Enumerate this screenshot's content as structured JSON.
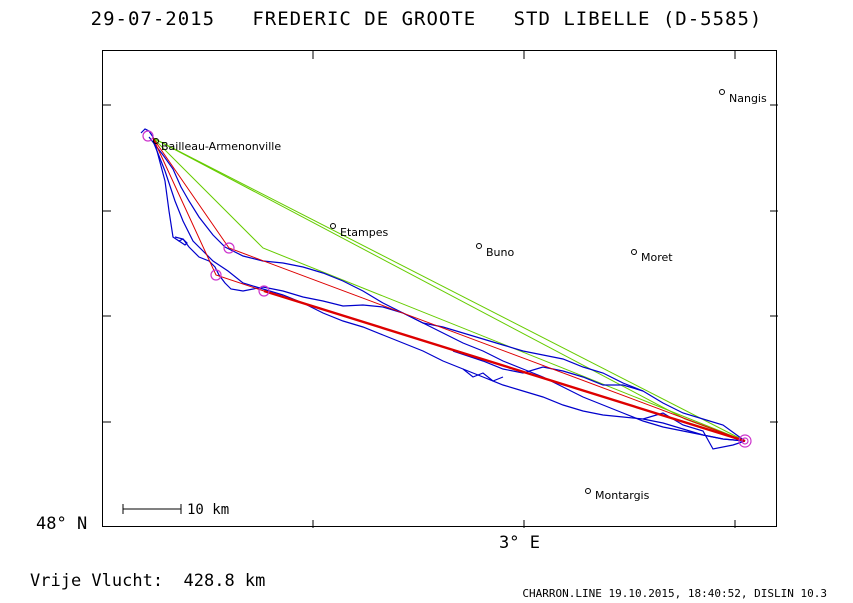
{
  "header": {
    "date": "29-07-2015",
    "pilot": "FREDERIC DE GROOTE",
    "glider": "STD LIBELLE (D-5585)"
  },
  "axes": {
    "latitude_label": "48° N",
    "longitude_label": "3° E"
  },
  "scale_bar": {
    "label": "10 km"
  },
  "towns": [
    {
      "name": "Nangis"
    },
    {
      "name": "Bailleau-Armenonville"
    },
    {
      "name": "Etampes"
    },
    {
      "name": "Buno"
    },
    {
      "name": "Moret"
    },
    {
      "name": "Montargis"
    }
  ],
  "footer": {
    "distance": "Vrije Vlucht:  428.8 km",
    "credits": "CHARRON.LINE 19.10.2015, 18:40:52, DISLIN 10.3"
  },
  "colors": {
    "track": "#0000cc",
    "task_legs": "#dd0000",
    "alt_legs": "#66cc00",
    "turnpoints": "#cc33cc",
    "frame": "#000000"
  }
}
